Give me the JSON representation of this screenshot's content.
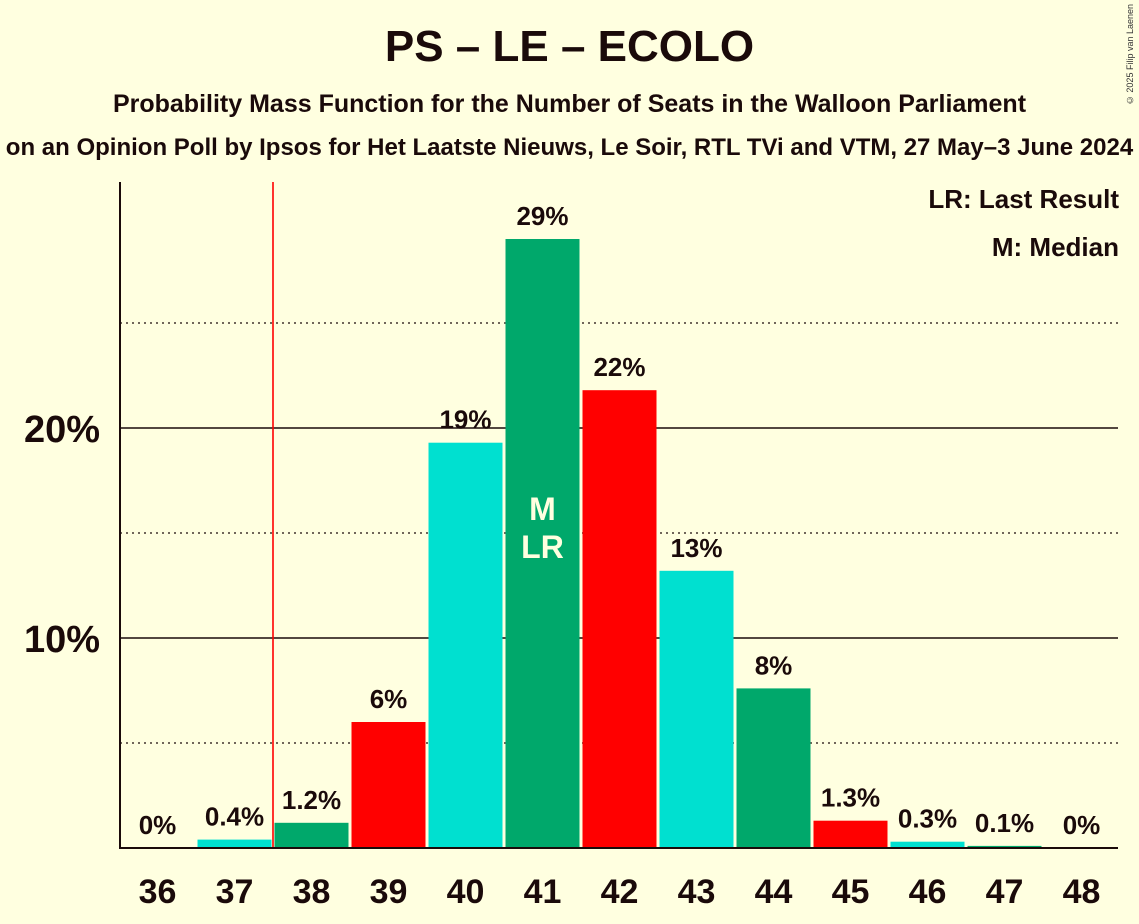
{
  "chart_data": {
    "type": "bar",
    "title": "PS – LE – ECOLO",
    "subtitle": "Probability Mass Function for the Number of Seats in the Walloon Parliament",
    "subtitle2": "on an Opinion Poll by Ipsos for Het Laatste Nieuws, Le Soir, RTL TVi and VTM, 27 May–3 June 2024",
    "copyright": "© 2025 Filip van Laenen",
    "categories": [
      "36",
      "37",
      "38",
      "39",
      "40",
      "41",
      "42",
      "43",
      "44",
      "45",
      "46",
      "47",
      "48"
    ],
    "values": [
      0,
      0.4,
      1.2,
      6,
      19.3,
      29,
      21.8,
      13.2,
      7.6,
      1.3,
      0.3,
      0.1,
      0
    ],
    "labels": [
      "0%",
      "0.4%",
      "1.2%",
      "6%",
      "19%",
      "29%",
      "22%",
      "13%",
      "8%",
      "1.3%",
      "0.3%",
      "0.1%",
      "0%"
    ],
    "colors": [
      "#00E0D0",
      "#00E0D0",
      "#00A86B",
      "#FF0000",
      "#00E0D0",
      "#00A86B",
      "#FF0000",
      "#00E0D0",
      "#00A86B",
      "#FF0000",
      "#00E0D0",
      "#00A86B",
      "#FF0000"
    ],
    "y_ticks": [
      {
        "value": 10,
        "label": "10%"
      },
      {
        "value": 20,
        "label": "20%"
      }
    ],
    "y_minor_ticks": [
      5,
      15,
      25
    ],
    "ylim": [
      0,
      31.5
    ],
    "last_result_line": "37.5",
    "median_seat": "41",
    "median_marker": "M",
    "last_result_marker": "LR",
    "legend": {
      "lr": "LR: Last Result",
      "m": "M: Median"
    },
    "line_color": "#FF0000"
  }
}
